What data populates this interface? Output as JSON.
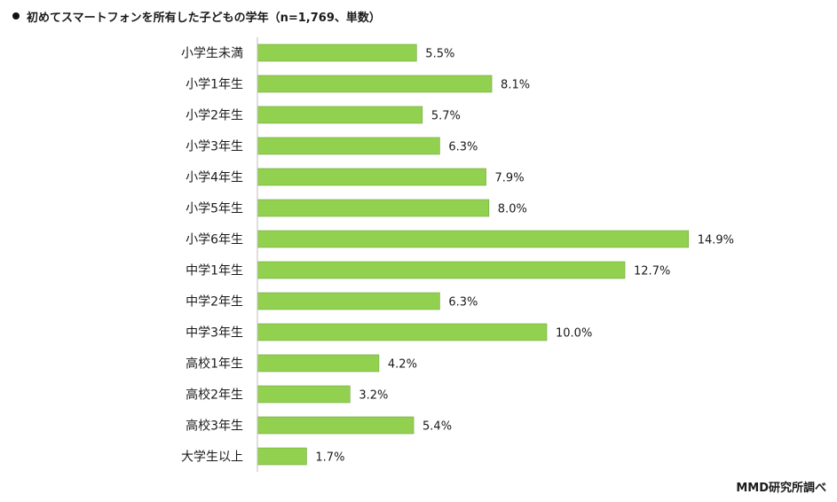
{
  "title": "初めてスマートフォンを所有した子どもの学年（n=1,769、単数）",
  "source": "MMD研究所調べ",
  "colors": {
    "bar_fill": "#92d050",
    "bar_stroke": "#6fa83a",
    "axis": "#bfbfbf"
  },
  "chart_data": {
    "type": "bar",
    "orientation": "horizontal",
    "title": "初めてスマートフォンを所有した子どもの学年（n=1,769、単数）",
    "categories": [
      "小学生未満",
      "小学1年生",
      "小学2年生",
      "小学3年生",
      "小学4年生",
      "小学5年生",
      "小学6年生",
      "中学1年生",
      "中学2年生",
      "中学3年生",
      "高校1年生",
      "高校2年生",
      "高校3年生",
      "大学生以上"
    ],
    "values": [
      5.5,
      8.1,
      5.7,
      6.3,
      7.9,
      8.0,
      14.9,
      12.7,
      6.3,
      10.0,
      4.2,
      3.2,
      5.4,
      1.7
    ],
    "value_labels": [
      "5.5%",
      "8.1%",
      "5.7%",
      "6.3%",
      "7.9%",
      "8.0%",
      "14.9%",
      "12.7%",
      "6.3%",
      "10.0%",
      "4.2%",
      "3.2%",
      "5.4%",
      "1.7%"
    ],
    "xlim": [
      0,
      15
    ],
    "grid": false,
    "legend": "none"
  }
}
